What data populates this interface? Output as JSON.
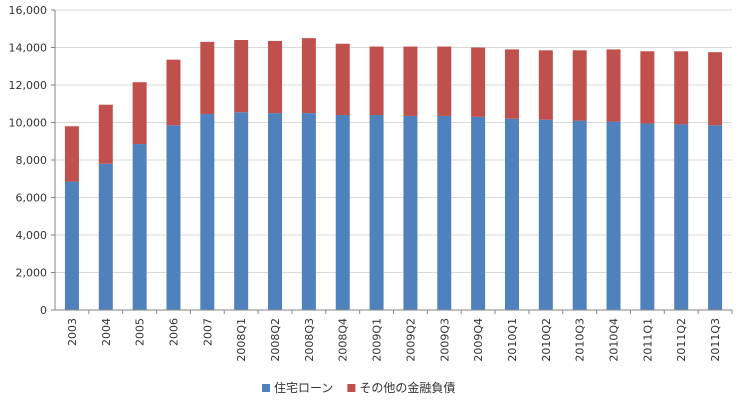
{
  "chart_data": {
    "type": "bar",
    "stacked": true,
    "categories": [
      "2003",
      "2004",
      "2005",
      "2006",
      "2007",
      "2008Q1",
      "2008Q2",
      "2008Q3",
      "2008Q4",
      "2009Q1",
      "2009Q2",
      "2009Q3",
      "2009Q4",
      "2010Q1",
      "2010Q2",
      "2010Q3",
      "2010Q4",
      "2011Q1",
      "2011Q2",
      "2011Q3"
    ],
    "series": [
      {
        "name": "住宅ローン",
        "color": "#4f81bd",
        "values": [
          6850,
          7800,
          8850,
          9850,
          10450,
          10550,
          10500,
          10500,
          10400,
          10400,
          10350,
          10350,
          10300,
          10200,
          10150,
          10100,
          10050,
          9950,
          9900,
          9850
        ]
      },
      {
        "name": "その他の金融負債",
        "color": "#c0504d",
        "values": [
          2950,
          3150,
          3300,
          3500,
          3850,
          3850,
          3850,
          4000,
          3800,
          3650,
          3700,
          3700,
          3700,
          3700,
          3700,
          3750,
          3850,
          3850,
          3900,
          3900
        ]
      }
    ],
    "ylim": [
      0,
      16000
    ],
    "yticks": [
      "0",
      "2,000",
      "4,000",
      "6,000",
      "8,000",
      "10,000",
      "12,000",
      "14,000",
      "16,000"
    ],
    "grid": true,
    "legend_position": "bottom"
  }
}
